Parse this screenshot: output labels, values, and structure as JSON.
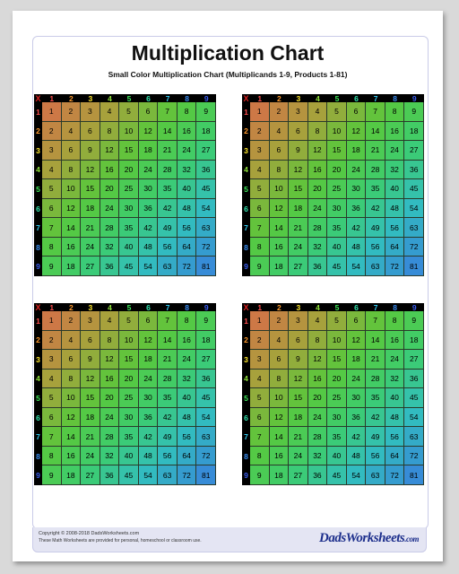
{
  "page": {
    "title": "Multiplication Chart",
    "subtitle": "Small Color Multiplication Chart (Multiplicands 1-9, Products 1-81)"
  },
  "chart": {
    "corner": "X",
    "headers": [
      "1",
      "2",
      "3",
      "4",
      "5",
      "6",
      "7",
      "8",
      "9"
    ],
    "header_colors": [
      "#ff4d4d",
      "#ff9a2e",
      "#ffe82e",
      "#8fe23a",
      "#3ee85a",
      "#33e6b0",
      "#33c8ee",
      "#3a8cf0",
      "#3a5ef0"
    ],
    "rows": [
      [
        "1",
        "2",
        "3",
        "4",
        "5",
        "6",
        "7",
        "8",
        "9"
      ],
      [
        "2",
        "4",
        "6",
        "8",
        "10",
        "12",
        "14",
        "16",
        "18"
      ],
      [
        "3",
        "6",
        "9",
        "12",
        "15",
        "18",
        "21",
        "24",
        "27"
      ],
      [
        "4",
        "8",
        "12",
        "16",
        "20",
        "24",
        "28",
        "32",
        "36"
      ],
      [
        "5",
        "10",
        "15",
        "20",
        "25",
        "30",
        "35",
        "40",
        "45"
      ],
      [
        "6",
        "12",
        "18",
        "24",
        "30",
        "36",
        "42",
        "48",
        "54"
      ],
      [
        "7",
        "14",
        "21",
        "28",
        "35",
        "42",
        "49",
        "56",
        "63"
      ],
      [
        "8",
        "16",
        "24",
        "32",
        "40",
        "48",
        "56",
        "64",
        "72"
      ],
      [
        "9",
        "18",
        "27",
        "36",
        "45",
        "54",
        "63",
        "72",
        "81"
      ]
    ]
  },
  "footer": {
    "copyright": "Copyright © 2008-2018 DadsWorksheets.com",
    "notice": "These Math Worksheets are provided for personal, homeschool or classroom use.",
    "logo_main": "DadsWorksheets",
    "logo_suffix": ".com"
  }
}
